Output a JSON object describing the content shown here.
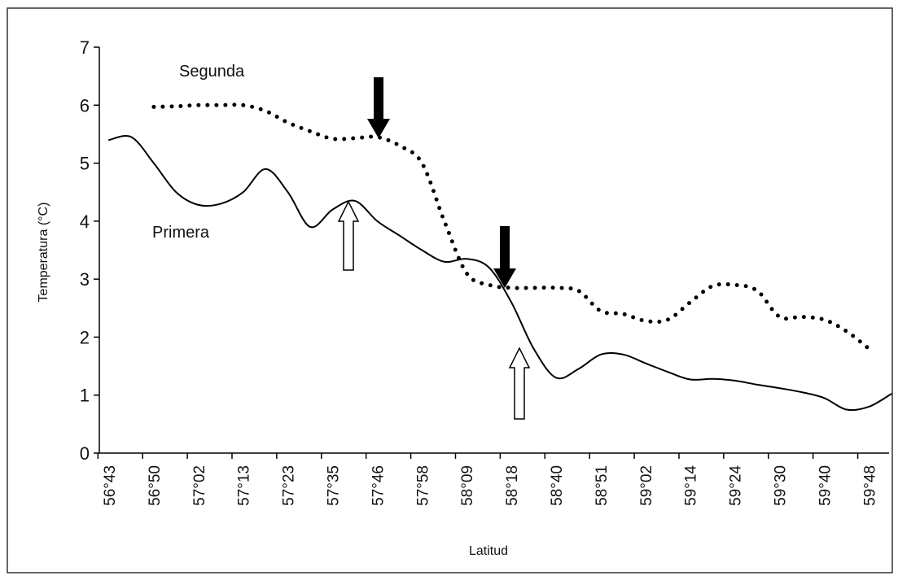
{
  "chart_data": {
    "type": "line",
    "y_label": "Temperatura (°C)",
    "x_label": "Latitud",
    "annotations": [
      "Segunda",
      "Primera"
    ],
    "categories": [
      "56°43",
      null,
      "56°50",
      null,
      "57°02",
      null,
      "57°13",
      null,
      "57°23",
      null,
      "57°35",
      null,
      "57°46",
      null,
      "57°58",
      null,
      "58°09",
      null,
      "58°18",
      null,
      "58°40",
      null,
      "58°51",
      null,
      "59°02",
      null,
      "59°14",
      null,
      "59°24",
      null,
      "59°30",
      null,
      "59°40",
      null,
      "59°48",
      null
    ],
    "series": [
      {
        "name": "Primera",
        "color": "#000000",
        "dash": "solid",
        "values": [
          5.4,
          5.45,
          5.0,
          4.5,
          4.28,
          4.3,
          4.5,
          4.9,
          4.5,
          3.9,
          4.2,
          4.35,
          4.0,
          3.75,
          3.5,
          3.3,
          3.35,
          3.2,
          2.6,
          1.8,
          1.3,
          1.45,
          1.7,
          1.7,
          1.55,
          1.4,
          1.27,
          1.28,
          1.25,
          1.18,
          1.12,
          1.05,
          0.95,
          0.75,
          0.8,
          1.02
        ]
      },
      {
        "name": "Segunda",
        "color": "#000000",
        "dash": "dotted",
        "values": [
          null,
          null,
          5.97,
          5.98,
          6.0,
          6.0,
          6.0,
          5.9,
          5.7,
          5.55,
          5.42,
          5.43,
          5.45,
          5.3,
          5.0,
          4.0,
          3.1,
          2.9,
          2.85,
          2.85,
          2.85,
          2.8,
          2.45,
          2.4,
          2.28,
          2.3,
          2.6,
          2.88,
          2.9,
          2.8,
          2.35,
          2.35,
          2.3,
          2.1,
          1.8,
          null
        ]
      }
    ],
    "ylim": [
      0,
      7
    ],
    "yticks": [
      0,
      1,
      2,
      3,
      4,
      5,
      6,
      7
    ],
    "grid": false
  }
}
